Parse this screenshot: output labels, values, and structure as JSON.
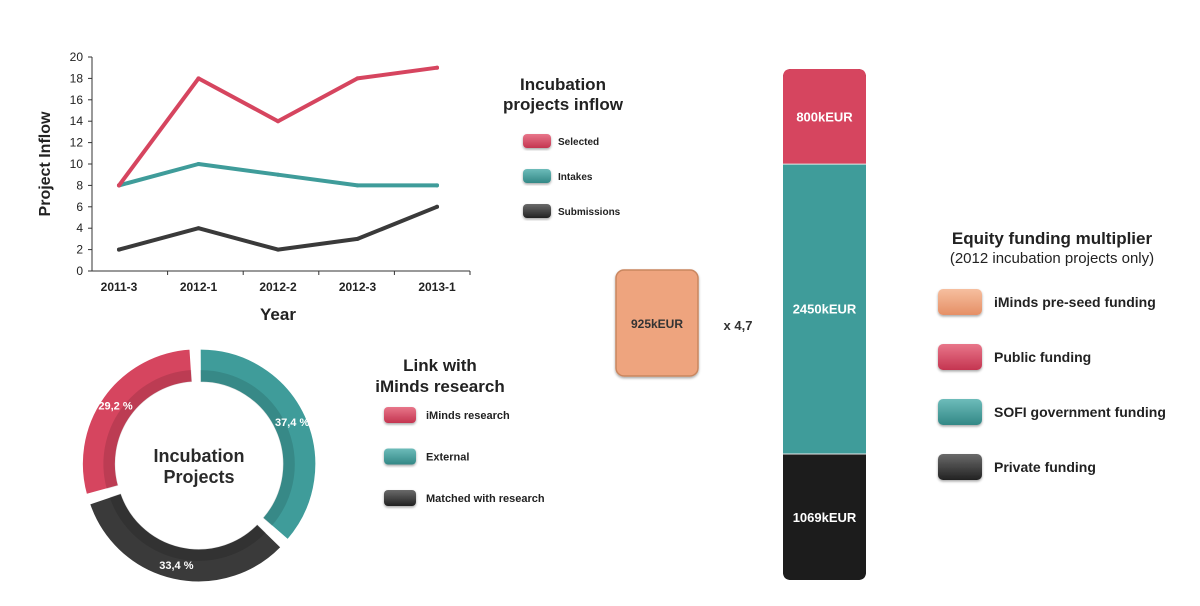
{
  "colors": {
    "selected": "#d6455f",
    "intakes": "#3f9c9a",
    "submissions": "#3a3a3a",
    "preseed": "#eea47e",
    "public": "#d6455f",
    "sofi": "#3f9c9a",
    "private": "#1c1c1c"
  },
  "chart_data": [
    {
      "type": "line",
      "title": "Incubation\nprojects inflow",
      "xlabel": "Year",
      "ylabel": "Project Inflow",
      "categories": [
        "2011-3",
        "2012-1",
        "2012-2",
        "2012-3",
        "2013-1"
      ],
      "ylim": [
        0,
        20
      ],
      "yticks": [
        "0",
        "2",
        "4",
        "6",
        "8",
        "10",
        "12",
        "14",
        "16",
        "18",
        "20"
      ],
      "grid": false,
      "legend_position": "right",
      "series": [
        {
          "name": "Selected",
          "values": [
            8,
            18,
            14,
            18,
            19
          ]
        },
        {
          "name": "Intakes",
          "values": [
            8,
            10,
            9,
            8,
            8
          ]
        },
        {
          "name": "Submissions",
          "values": [
            2,
            4,
            2,
            3,
            6
          ]
        }
      ]
    },
    {
      "type": "pie",
      "title": "Link with\niMinds research",
      "center_label": "Incubation\nProjects",
      "legend_position": "right",
      "slices": [
        {
          "name": "iMinds research",
          "value": 29.2,
          "label": "29,2 %"
        },
        {
          "name": "External",
          "value": 37.4,
          "label": "37,4 %"
        },
        {
          "name": "Matched with research",
          "value": 33.4,
          "label": "33,4 %"
        }
      ]
    },
    {
      "type": "bar",
      "title": "Equity funding multiplier",
      "subtitle": "(2012 incubation projects only)",
      "legend_position": "right",
      "multiplier_label": "x 4,7",
      "single_bar": {
        "name": "iMinds pre-seed funding",
        "value": 925,
        "label": "925kEUR"
      },
      "stacked_bar": [
        {
          "name": "Private funding",
          "value": 1069,
          "label": "1069kEUR"
        },
        {
          "name": "SOFI government funding",
          "value": 2450,
          "label": "2450kEUR"
        },
        {
          "name": "Public funding",
          "value": 800,
          "label": "800kEUR"
        }
      ],
      "legend": [
        "iMinds pre-seed funding",
        "Public funding",
        "SOFI government funding",
        "Private funding"
      ]
    }
  ]
}
